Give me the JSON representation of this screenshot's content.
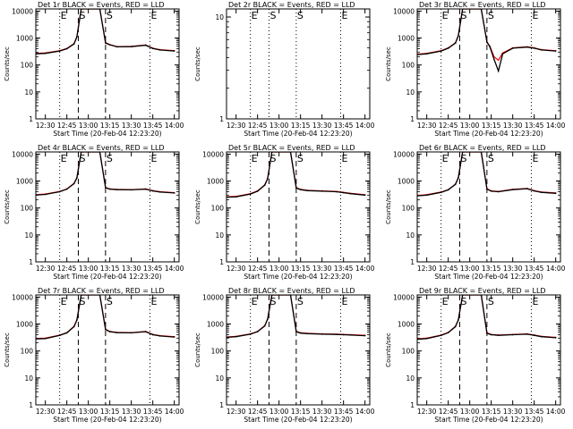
{
  "figure": {
    "xlabel": "Start Time (20-Feb-04 12:23:20)",
    "ylabel": "Counts/sec",
    "marker_labels": [
      "E",
      "S",
      "S",
      "E"
    ]
  },
  "colors": {
    "events": "#000000",
    "lld": "#ff0000",
    "background": "#ffffff"
  },
  "chart_data": [
    {
      "title": "Det 1r BLACK = Events, RED = LLD",
      "type": "line",
      "x_ticks": [
        "12:30",
        "12:45",
        "13:00",
        "13:15",
        "13:30",
        "13:45",
        "14:00"
      ],
      "xlim": [
        "12:23:20",
        "14:03:20"
      ],
      "ylim": [
        1,
        12000
      ],
      "yscale": "log",
      "y_ticks": [
        "1",
        "10",
        "100",
        "1000",
        "10000"
      ],
      "has_data": true,
      "dip": false,
      "vlines": [
        {
          "time": "12:40",
          "style": "dotted"
        },
        {
          "time": "12:53",
          "style": "dashed"
        },
        {
          "time": "13:12",
          "style": "dashed"
        },
        {
          "time": "13:43",
          "style": "dotted"
        }
      ],
      "series": [
        {
          "name": "Events",
          "x": [
            "12:23",
            "12:30",
            "12:40",
            "12:45",
            "12:50",
            "12:52",
            "12:55",
            "13:08",
            "13:12",
            "13:15",
            "13:20",
            "13:30",
            "13:40",
            "13:45",
            "13:50",
            "14:00"
          ],
          "y": [
            260,
            270,
            330,
            400,
            600,
            1100,
            12000,
            12000,
            650,
            560,
            470,
            480,
            540,
            410,
            360,
            330
          ]
        },
        {
          "name": "LLD",
          "x": [
            "12:23",
            "12:30",
            "12:40",
            "12:45",
            "12:50",
            "12:52",
            "12:55",
            "13:08",
            "13:12",
            "13:15",
            "13:20",
            "13:30",
            "13:40",
            "13:45",
            "13:50",
            "14:00"
          ],
          "y": [
            270,
            280,
            340,
            410,
            620,
            1150,
            12000,
            12000,
            680,
            570,
            480,
            490,
            550,
            420,
            370,
            340
          ]
        }
      ]
    },
    {
      "title": "Det 2r BLACK = Events, RED = LLD",
      "type": "line",
      "x_ticks": [
        "12:30",
        "12:45",
        "13:00",
        "13:15",
        "13:30",
        "13:45",
        "14:00"
      ],
      "xlim": [
        "12:23:20",
        "14:03:20"
      ],
      "ylim": [
        1,
        12
      ],
      "yscale": "log",
      "y_ticks": [
        "1",
        "10"
      ],
      "has_data": false,
      "dip": false,
      "vlines": [
        {
          "time": "12:40",
          "style": "dotted"
        },
        {
          "time": "12:53",
          "style": "dotted"
        },
        {
          "time": "13:12",
          "style": "dotted"
        },
        {
          "time": "13:43",
          "style": "dotted"
        }
      ],
      "series": []
    },
    {
      "title": "Det 3r BLACK = Events, RED = LLD",
      "type": "line",
      "x_ticks": [
        "12:30",
        "12:45",
        "13:00",
        "13:15",
        "13:30",
        "13:45",
        "14:00"
      ],
      "xlim": [
        "12:23:20",
        "14:03:20"
      ],
      "ylim": [
        1,
        12000
      ],
      "yscale": "log",
      "y_ticks": [
        "1",
        "10",
        "100",
        "1000",
        "10000"
      ],
      "has_data": true,
      "dip": true,
      "vlines": [
        {
          "time": "12:40",
          "style": "dotted"
        },
        {
          "time": "12:53",
          "style": "dashed"
        },
        {
          "time": "13:12",
          "style": "dashed"
        },
        {
          "time": "13:43",
          "style": "dotted"
        }
      ],
      "series": [
        {
          "name": "Events",
          "x": [
            "12:23",
            "12:30",
            "12:40",
            "12:45",
            "12:50",
            "12:52",
            "12:55",
            "13:08",
            "13:12",
            "13:14",
            "13:17",
            "13:20",
            "13:23",
            "13:30",
            "13:40",
            "13:45",
            "13:50",
            "14:00"
          ],
          "y": [
            240,
            260,
            330,
            420,
            650,
            1200,
            12000,
            12000,
            700,
            480,
            160,
            60,
            260,
            420,
            460,
            420,
            360,
            330
          ]
        },
        {
          "name": "LLD",
          "x": [
            "12:23",
            "12:30",
            "12:40",
            "12:45",
            "12:50",
            "12:52",
            "12:55",
            "13:08",
            "13:12",
            "13:14",
            "13:17",
            "13:20",
            "13:23",
            "13:30",
            "13:40",
            "13:45",
            "13:50",
            "14:00"
          ],
          "y": [
            250,
            270,
            340,
            430,
            670,
            1250,
            12000,
            12000,
            720,
            500,
            200,
            150,
            280,
            430,
            470,
            430,
            370,
            340
          ]
        }
      ]
    },
    {
      "title": "Det 4r BLACK = Events, RED = LLD",
      "type": "line",
      "x_ticks": [
        "12:30",
        "12:45",
        "13:00",
        "13:15",
        "13:30",
        "13:45",
        "14:00"
      ],
      "xlim": [
        "12:23:20",
        "14:03:20"
      ],
      "ylim": [
        1,
        12000
      ],
      "yscale": "log",
      "y_ticks": [
        "1",
        "10",
        "100",
        "1000",
        "10000"
      ],
      "has_data": true,
      "dip": false,
      "vlines": [
        {
          "time": "12:40",
          "style": "dotted"
        },
        {
          "time": "12:53",
          "style": "dashed"
        },
        {
          "time": "13:12",
          "style": "dashed"
        },
        {
          "time": "13:43",
          "style": "dotted"
        }
      ],
      "series": [
        {
          "name": "Events",
          "x": [
            "12:23",
            "12:30",
            "12:40",
            "12:45",
            "12:50",
            "12:52",
            "12:55",
            "13:08",
            "13:12",
            "13:15",
            "13:20",
            "13:30",
            "13:40",
            "13:45",
            "13:50",
            "14:00"
          ],
          "y": [
            300,
            320,
            400,
            500,
            800,
            1300,
            12000,
            12000,
            560,
            500,
            480,
            470,
            500,
            430,
            390,
            360
          ]
        },
        {
          "name": "LLD",
          "x": [
            "12:23",
            "12:30",
            "12:40",
            "12:45",
            "12:50",
            "12:52",
            "12:55",
            "13:08",
            "13:12",
            "13:15",
            "13:20",
            "13:30",
            "13:40",
            "13:45",
            "13:50",
            "14:00"
          ],
          "y": [
            310,
            330,
            410,
            510,
            820,
            1350,
            12000,
            12000,
            580,
            510,
            490,
            480,
            510,
            440,
            400,
            370
          ]
        }
      ]
    },
    {
      "title": "Det 5r BLACK = Events, RED = LLD",
      "type": "line",
      "x_ticks": [
        "12:30",
        "12:45",
        "13:00",
        "13:15",
        "13:30",
        "13:45",
        "14:00"
      ],
      "xlim": [
        "12:23:20",
        "14:03:20"
      ],
      "ylim": [
        1,
        12000
      ],
      "yscale": "log",
      "y_ticks": [
        "1",
        "10",
        "100",
        "1000",
        "10000"
      ],
      "has_data": true,
      "dip": false,
      "vlines": [
        {
          "time": "12:40",
          "style": "dotted"
        },
        {
          "time": "12:53",
          "style": "dashed"
        },
        {
          "time": "13:12",
          "style": "dashed"
        },
        {
          "time": "13:43",
          "style": "dotted"
        }
      ],
      "series": [
        {
          "name": "Events",
          "x": [
            "12:23",
            "12:30",
            "12:40",
            "12:45",
            "12:50",
            "12:52",
            "12:55",
            "13:08",
            "13:12",
            "13:15",
            "13:20",
            "13:30",
            "13:40",
            "13:45",
            "13:50",
            "14:00"
          ],
          "y": [
            250,
            260,
            330,
            420,
            700,
            1200,
            12000,
            12000,
            550,
            480,
            440,
            420,
            400,
            370,
            340,
            300
          ]
        },
        {
          "name": "LLD",
          "x": [
            "12:23",
            "12:30",
            "12:40",
            "12:45",
            "12:50",
            "12:52",
            "12:55",
            "13:08",
            "13:12",
            "13:15",
            "13:20",
            "13:30",
            "13:40",
            "13:45",
            "13:50",
            "14:00"
          ],
          "y": [
            260,
            270,
            340,
            430,
            720,
            1250,
            12000,
            12000,
            570,
            490,
            450,
            430,
            410,
            380,
            350,
            310
          ]
        }
      ]
    },
    {
      "title": "Det 6r BLACK = Events, RED = LLD",
      "type": "line",
      "x_ticks": [
        "12:30",
        "12:45",
        "13:00",
        "13:15",
        "13:30",
        "13:45",
        "14:00"
      ],
      "xlim": [
        "12:23:20",
        "14:03:20"
      ],
      "ylim": [
        1,
        12000
      ],
      "yscale": "log",
      "y_ticks": [
        "1",
        "10",
        "100",
        "1000",
        "10000"
      ],
      "has_data": true,
      "dip": false,
      "vlines": [
        {
          "time": "12:40",
          "style": "dotted"
        },
        {
          "time": "12:53",
          "style": "dashed"
        },
        {
          "time": "13:12",
          "style": "dashed"
        },
        {
          "time": "13:43",
          "style": "dotted"
        }
      ],
      "series": [
        {
          "name": "Events",
          "x": [
            "12:23",
            "12:30",
            "12:40",
            "12:45",
            "12:50",
            "12:52",
            "12:55",
            "13:08",
            "13:12",
            "13:15",
            "13:20",
            "13:30",
            "13:40",
            "13:45",
            "13:50",
            "14:00"
          ],
          "y": [
            280,
            300,
            380,
            470,
            750,
            1300,
            12000,
            12000,
            500,
            420,
            400,
            480,
            520,
            430,
            380,
            350
          ]
        },
        {
          "name": "LLD",
          "x": [
            "12:23",
            "12:30",
            "12:40",
            "12:45",
            "12:50",
            "12:52",
            "12:55",
            "13:08",
            "13:12",
            "13:15",
            "13:20",
            "13:30",
            "13:40",
            "13:45",
            "13:50",
            "14:00"
          ],
          "y": [
            290,
            310,
            390,
            480,
            770,
            1350,
            12000,
            12000,
            520,
            430,
            410,
            490,
            530,
            440,
            390,
            360
          ]
        }
      ]
    },
    {
      "title": "Det 7r BLACK = Events, RED = LLD",
      "type": "line",
      "x_ticks": [
        "12:30",
        "12:45",
        "13:00",
        "13:15",
        "13:30",
        "13:45",
        "14:00"
      ],
      "xlim": [
        "12:23:20",
        "14:03:20"
      ],
      "ylim": [
        1,
        12000
      ],
      "yscale": "log",
      "y_ticks": [
        "1",
        "10",
        "100",
        "1000",
        "10000"
      ],
      "has_data": true,
      "dip": false,
      "vlines": [
        {
          "time": "12:40",
          "style": "dotted"
        },
        {
          "time": "12:53",
          "style": "dashed"
        },
        {
          "time": "13:12",
          "style": "dashed"
        },
        {
          "time": "13:43",
          "style": "dotted"
        }
      ],
      "series": [
        {
          "name": "Events",
          "x": [
            "12:23",
            "12:30",
            "12:40",
            "12:45",
            "12:50",
            "12:52",
            "12:55",
            "13:08",
            "13:12",
            "13:15",
            "13:20",
            "13:30",
            "13:40",
            "13:45",
            "13:50",
            "14:00"
          ],
          "y": [
            280,
            290,
            380,
            470,
            800,
            1400,
            12000,
            12000,
            620,
            520,
            480,
            470,
            520,
            400,
            360,
            330
          ]
        },
        {
          "name": "LLD",
          "x": [
            "12:23",
            "12:30",
            "12:40",
            "12:45",
            "12:50",
            "12:52",
            "12:55",
            "13:08",
            "13:12",
            "13:15",
            "13:20",
            "13:30",
            "13:40",
            "13:45",
            "13:50",
            "14:00"
          ],
          "y": [
            290,
            300,
            390,
            480,
            820,
            1450,
            12000,
            12000,
            640,
            530,
            490,
            480,
            530,
            410,
            370,
            340
          ]
        }
      ]
    },
    {
      "title": "Det 8r BLACK = Events, RED = LLD",
      "type": "line",
      "x_ticks": [
        "12:30",
        "12:45",
        "13:00",
        "13:15",
        "13:30",
        "13:45",
        "14:00"
      ],
      "xlim": [
        "12:23:20",
        "14:03:20"
      ],
      "ylim": [
        1,
        12000
      ],
      "yscale": "log",
      "y_ticks": [
        "1",
        "10",
        "100",
        "1000",
        "10000"
      ],
      "has_data": true,
      "dip": false,
      "vlines": [
        {
          "time": "12:40",
          "style": "dotted"
        },
        {
          "time": "12:53",
          "style": "dashed"
        },
        {
          "time": "13:12",
          "style": "dashed"
        },
        {
          "time": "13:43",
          "style": "dotted"
        }
      ],
      "series": [
        {
          "name": "Events",
          "x": [
            "12:23",
            "12:30",
            "12:40",
            "12:45",
            "12:50",
            "12:52",
            "12:55",
            "13:08",
            "13:12",
            "13:15",
            "13:20",
            "13:30",
            "13:40",
            "13:45",
            "13:50",
            "14:00"
          ],
          "y": [
            320,
            340,
            420,
            520,
            850,
            1500,
            12000,
            12000,
            520,
            460,
            440,
            420,
            410,
            400,
            390,
            370
          ]
        },
        {
          "name": "LLD",
          "x": [
            "12:23",
            "12:30",
            "12:40",
            "12:45",
            "12:50",
            "12:52",
            "12:55",
            "13:08",
            "13:12",
            "13:15",
            "13:20",
            "13:30",
            "13:40",
            "13:45",
            "13:50",
            "14:00"
          ],
          "y": [
            330,
            350,
            430,
            530,
            870,
            1550,
            12000,
            12000,
            540,
            470,
            450,
            430,
            420,
            410,
            400,
            380
          ]
        }
      ]
    },
    {
      "title": "Det 9r BLACK = Events, RED = LLD",
      "type": "line",
      "x_ticks": [
        "12:30",
        "12:45",
        "13:00",
        "13:15",
        "13:30",
        "13:45",
        "14:00"
      ],
      "xlim": [
        "12:23:20",
        "14:03:20"
      ],
      "ylim": [
        1,
        12000
      ],
      "yscale": "log",
      "y_ticks": [
        "1",
        "10",
        "100",
        "1000",
        "10000"
      ],
      "has_data": true,
      "dip": false,
      "vlines": [
        {
          "time": "12:40",
          "style": "dotted"
        },
        {
          "time": "12:53",
          "style": "dashed"
        },
        {
          "time": "13:12",
          "style": "dashed"
        },
        {
          "time": "13:43",
          "style": "dotted"
        }
      ],
      "series": [
        {
          "name": "Events",
          "x": [
            "12:23",
            "12:30",
            "12:40",
            "12:45",
            "12:50",
            "12:52",
            "12:55",
            "13:08",
            "13:12",
            "13:15",
            "13:20",
            "13:30",
            "13:40",
            "13:45",
            "13:50",
            "14:00"
          ],
          "y": [
            270,
            290,
            380,
            480,
            800,
            1400,
            12000,
            12000,
            450,
            400,
            380,
            400,
            420,
            380,
            340,
            310
          ]
        },
        {
          "name": "LLD",
          "x": [
            "12:23",
            "12:30",
            "12:40",
            "12:45",
            "12:50",
            "12:52",
            "12:55",
            "13:08",
            "13:12",
            "13:15",
            "13:20",
            "13:30",
            "13:40",
            "13:45",
            "13:50",
            "14:00"
          ],
          "y": [
            280,
            300,
            390,
            490,
            820,
            1450,
            12000,
            12000,
            470,
            410,
            390,
            410,
            430,
            390,
            350,
            320
          ]
        }
      ]
    }
  ]
}
